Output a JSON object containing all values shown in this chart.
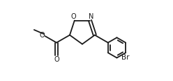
{
  "background": "#ffffff",
  "line_color": "#1a1a1a",
  "line_width": 1.3,
  "font_size": 7.0,
  "bond_color": "#1a1a1a",
  "xlim": [
    -2.8,
    3.8
  ],
  "ylim": [
    -2.2,
    1.6
  ]
}
